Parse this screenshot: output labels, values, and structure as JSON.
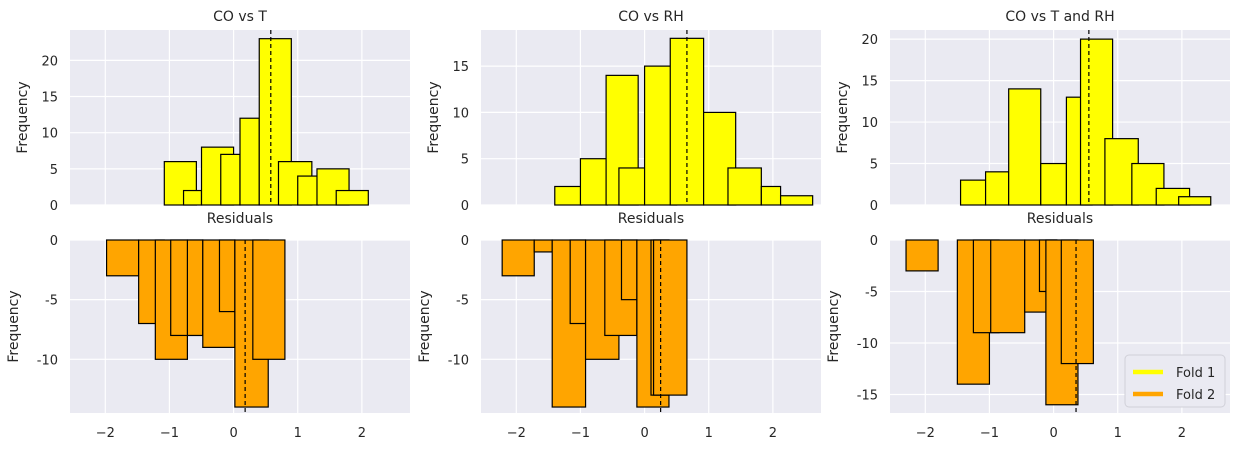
{
  "colors": {
    "fold1": "#ffff00",
    "fold2": "#ffa500",
    "panel_bg": "#eaeaf2",
    "grid": "#ffffff",
    "edge": "#000000"
  },
  "legend": {
    "placement": "lower-right of bottom-right panel",
    "items": [
      {
        "label": "Fold 1",
        "color": "#ffff00"
      },
      {
        "label": "Fold 2",
        "color": "#ffa500"
      }
    ]
  },
  "chart_data": [
    {
      "type": "bar",
      "title": "CO vs T",
      "xlabel": "Residuals",
      "ylabel": "Frequency",
      "xlim": [
        -2.55,
        2.75
      ],
      "ylim": [
        0,
        24.2
      ],
      "yticks": [
        0,
        5,
        10,
        15,
        20
      ],
      "grid": true,
      "mean_line": 0.58,
      "bars": [
        {
          "x0": -1.08,
          "x1": -0.58,
          "value": 6
        },
        {
          "x0": -0.78,
          "x1": -0.5,
          "value": 2
        },
        {
          "x0": -0.5,
          "x1": 0.0,
          "value": 8
        },
        {
          "x0": -0.2,
          "x1": 0.1,
          "value": 7
        },
        {
          "x0": 0.1,
          "x1": 0.4,
          "value": 12
        },
        {
          "x0": 0.4,
          "x1": 0.9,
          "value": 23
        },
        {
          "x0": 0.7,
          "x1": 1.22,
          "value": 6
        },
        {
          "x0": 1.0,
          "x1": 1.32,
          "value": 4
        },
        {
          "x0": 1.3,
          "x1": 1.8,
          "value": 5
        },
        {
          "x0": 1.6,
          "x1": 2.1,
          "value": 2
        }
      ]
    },
    {
      "type": "bar",
      "title": "CO vs RH",
      "xlabel": "Residuals",
      "ylabel": "Frequency",
      "xlim": [
        -2.55,
        2.75
      ],
      "ylim": [
        0,
        18.9
      ],
      "yticks": [
        0,
        5,
        10,
        15
      ],
      "grid": true,
      "mean_line": 0.66,
      "bars": [
        {
          "x0": -1.4,
          "x1": -0.98,
          "value": 2
        },
        {
          "x0": -1.0,
          "x1": -0.58,
          "value": 5
        },
        {
          "x0": -0.6,
          "x1": -0.1,
          "value": 14
        },
        {
          "x0": -0.4,
          "x1": 0.0,
          "value": 4
        },
        {
          "x0": 0.0,
          "x1": 0.5,
          "value": 15
        },
        {
          "x0": 0.4,
          "x1": 0.92,
          "value": 18
        },
        {
          "x0": 0.92,
          "x1": 1.42,
          "value": 10
        },
        {
          "x0": 1.3,
          "x1": 1.82,
          "value": 4
        },
        {
          "x0": 1.82,
          "x1": 2.12,
          "value": 2
        },
        {
          "x0": 2.12,
          "x1": 2.62,
          "value": 1
        }
      ]
    },
    {
      "type": "bar",
      "title": "CO vs T and RH",
      "xlabel": "Residuals",
      "ylabel": "Frequency",
      "xlim": [
        -2.55,
        2.75
      ],
      "ylim": [
        0,
        21.1
      ],
      "yticks": [
        0,
        5,
        10,
        15,
        20
      ],
      "grid": true,
      "mean_line": 0.55,
      "bars": [
        {
          "x0": -1.45,
          "x1": -1.06,
          "value": 3
        },
        {
          "x0": -1.06,
          "x1": -0.7,
          "value": 4
        },
        {
          "x0": -0.7,
          "x1": -0.2,
          "value": 14
        },
        {
          "x0": -0.2,
          "x1": 0.2,
          "value": 5
        },
        {
          "x0": 0.2,
          "x1": 0.6,
          "value": 13
        },
        {
          "x0": 0.42,
          "x1": 0.92,
          "value": 20
        },
        {
          "x0": 0.8,
          "x1": 1.32,
          "value": 8
        },
        {
          "x0": 1.22,
          "x1": 1.72,
          "value": 5
        },
        {
          "x0": 1.6,
          "x1": 2.12,
          "value": 2
        },
        {
          "x0": 1.95,
          "x1": 2.45,
          "value": 1
        }
      ]
    },
    {
      "type": "bar",
      "title": "",
      "xlabel": "",
      "ylabel": "Frequency",
      "xlim": [
        -2.55,
        2.75
      ],
      "ylim": [
        -14.5,
        0
      ],
      "yticks": [
        0,
        -5,
        -10
      ],
      "xticks": [
        -2,
        -1,
        0,
        1,
        2
      ],
      "grid": true,
      "mean_line": 0.18,
      "bars": [
        {
          "x0": -1.98,
          "x1": -1.48,
          "value": -3
        },
        {
          "x0": -1.48,
          "x1": -1.08,
          "value": -7
        },
        {
          "x0": -1.22,
          "x1": -0.72,
          "value": -10
        },
        {
          "x0": -0.98,
          "x1": -0.48,
          "value": -8
        },
        {
          "x0": -0.72,
          "x1": -0.48,
          "value": -8
        },
        {
          "x0": -0.48,
          "x1": 0.02,
          "value": -9
        },
        {
          "x0": -0.22,
          "x1": 0.02,
          "value": -6
        },
        {
          "x0": 0.02,
          "x1": 0.54,
          "value": -14
        },
        {
          "x0": 0.3,
          "x1": 0.8,
          "value": -10
        }
      ]
    },
    {
      "type": "bar",
      "title": "",
      "xlabel": "",
      "ylabel": "Frequency",
      "xlim": [
        -2.55,
        2.75
      ],
      "ylim": [
        -14.5,
        0
      ],
      "yticks": [
        0,
        -5,
        -10
      ],
      "xticks": [
        -2,
        -1,
        0,
        1,
        2
      ],
      "grid": true,
      "mean_line": 0.25,
      "bars": [
        {
          "x0": -2.22,
          "x1": -1.72,
          "value": -3
        },
        {
          "x0": -1.72,
          "x1": -1.44,
          "value": -1
        },
        {
          "x0": -1.44,
          "x1": -0.92,
          "value": -14
        },
        {
          "x0": -1.16,
          "x1": -0.92,
          "value": -7
        },
        {
          "x0": -0.92,
          "x1": -0.4,
          "value": -10
        },
        {
          "x0": -0.62,
          "x1": -0.12,
          "value": -8
        },
        {
          "x0": -0.36,
          "x1": -0.12,
          "value": -5
        },
        {
          "x0": -0.12,
          "x1": 0.38,
          "value": -14
        },
        {
          "x0": 0.1,
          "x1": 0.38,
          "value": -13
        },
        {
          "x0": 0.14,
          "x1": 0.66,
          "value": -13
        }
      ]
    },
    {
      "type": "bar",
      "title": "",
      "xlabel": "",
      "ylabel": "Frequency",
      "xlim": [
        -2.55,
        2.75
      ],
      "ylim": [
        -16.8,
        0
      ],
      "yticks": [
        0,
        -5,
        -10,
        -15
      ],
      "xticks": [
        -2,
        -1,
        0,
        1,
        2
      ],
      "grid": true,
      "mean_line": 0.35,
      "bars": [
        {
          "x0": -2.3,
          "x1": -1.8,
          "value": -3
        },
        {
          "x0": -1.5,
          "x1": -1.0,
          "value": -14
        },
        {
          "x0": -1.25,
          "x1": -0.85,
          "value": -9
        },
        {
          "x0": -0.98,
          "x1": -0.45,
          "value": -9
        },
        {
          "x0": -0.45,
          "x1": 0.05,
          "value": -7
        },
        {
          "x0": -0.22,
          "x1": 0.05,
          "value": -5
        },
        {
          "x0": -0.12,
          "x1": 0.38,
          "value": -16
        },
        {
          "x0": 0.12,
          "x1": 0.62,
          "value": -12
        }
      ]
    }
  ]
}
